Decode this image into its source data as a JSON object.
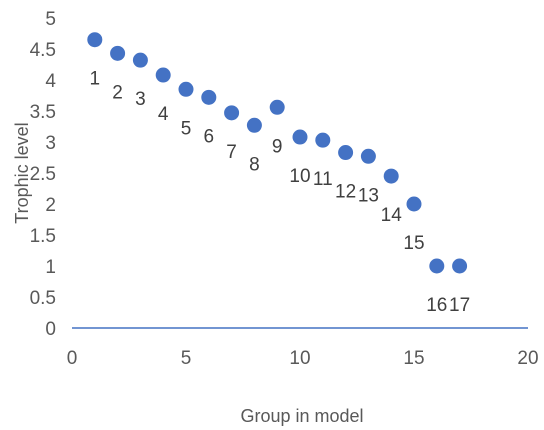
{
  "chart_data": {
    "type": "scatter",
    "xlabel": "Group in model",
    "ylabel": "Trophic level",
    "xlim": [
      0,
      20
    ],
    "ylim": [
      0,
      5
    ],
    "x_ticks": [
      "0",
      "5",
      "10",
      "15",
      "20"
    ],
    "y_ticks": [
      "0",
      "0.5",
      "1",
      "1.5",
      "2",
      "2.5",
      "3",
      "3.5",
      "4",
      "4.5",
      "5"
    ],
    "grid": false,
    "legend": "none",
    "marker_color": "#4472C4",
    "axis_color": "#4472C4",
    "series": [
      {
        "points": [
          {
            "x": 1,
            "y": 4.65,
            "label": "1"
          },
          {
            "x": 2,
            "y": 4.43,
            "label": "2"
          },
          {
            "x": 3,
            "y": 4.32,
            "label": "3"
          },
          {
            "x": 4,
            "y": 4.08,
            "label": "4"
          },
          {
            "x": 5,
            "y": 3.85,
            "label": "5"
          },
          {
            "x": 6,
            "y": 3.72,
            "label": "6"
          },
          {
            "x": 7,
            "y": 3.47,
            "label": "7"
          },
          {
            "x": 8,
            "y": 3.27,
            "label": "8"
          },
          {
            "x": 9,
            "y": 3.56,
            "label": "9"
          },
          {
            "x": 10,
            "y": 3.08,
            "label": "10"
          },
          {
            "x": 11,
            "y": 3.03,
            "label": "11"
          },
          {
            "x": 12,
            "y": 2.83,
            "label": "12"
          },
          {
            "x": 13,
            "y": 2.77,
            "label": "13"
          },
          {
            "x": 14,
            "y": 2.45,
            "label": "14"
          },
          {
            "x": 15,
            "y": 2.0,
            "label": "15"
          },
          {
            "x": 16,
            "y": 1.0,
            "label": "16"
          },
          {
            "x": 17,
            "y": 1.0,
            "label": "17"
          }
        ]
      }
    ]
  }
}
